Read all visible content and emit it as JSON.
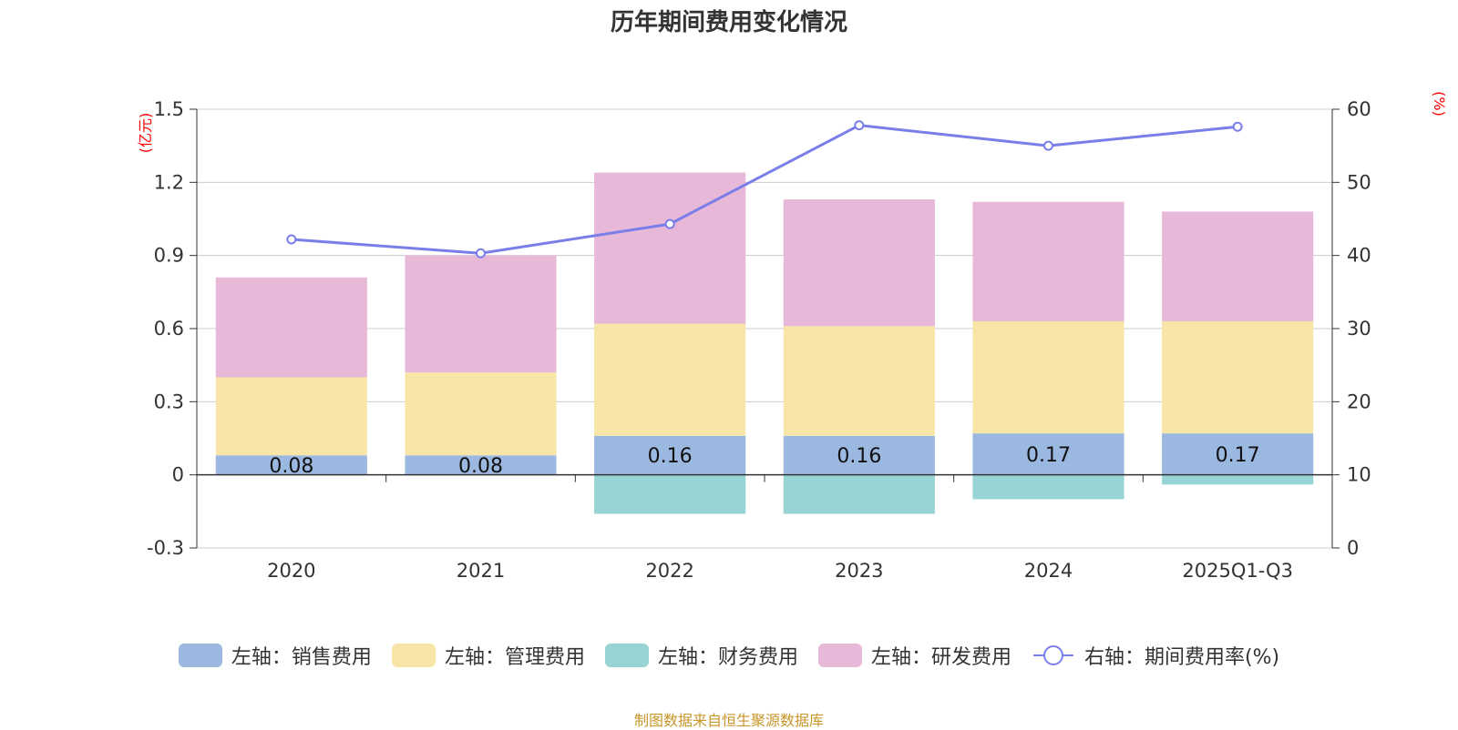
{
  "chart_data": {
    "type": "bar",
    "stacked": true,
    "title": "历年期间费用变化情况",
    "categories": [
      "2020",
      "2021",
      "2022",
      "2023",
      "2024",
      "2025Q1-Q3"
    ],
    "left_axis": {
      "unit": "(亿元)",
      "ylim": [
        -0.3,
        1.5
      ],
      "ticks": [
        "-0.3",
        "0",
        "0.3",
        "0.6",
        "0.9",
        "1.2",
        "1.5"
      ],
      "tick_values": [
        -0.3,
        0,
        0.3,
        0.6,
        0.9,
        1.2,
        1.5
      ]
    },
    "right_axis": {
      "unit": "(%)",
      "ylim": [
        0,
        60
      ],
      "ticks": [
        "0",
        "10",
        "20",
        "30",
        "40",
        "50",
        "60"
      ],
      "tick_values": [
        0,
        10,
        20,
        30,
        40,
        50,
        60
      ]
    },
    "series": [
      {
        "name": "左轴：销售费用",
        "axis": "left",
        "color": "#9bb8e0",
        "values": [
          0.08,
          0.08,
          0.16,
          0.16,
          0.17,
          0.17
        ],
        "labels": [
          "0.08",
          "0.08",
          "0.16",
          "0.16",
          "0.17",
          "0.17"
        ]
      },
      {
        "name": "左轴：管理费用",
        "axis": "left",
        "color": "#f8e6a8",
        "values": [
          0.32,
          0.34,
          0.46,
          0.45,
          0.46,
          0.46
        ]
      },
      {
        "name": "左轴：财务费用",
        "axis": "left",
        "color": "#98d4d4",
        "values": [
          0,
          0,
          -0.16,
          -0.16,
          -0.1,
          -0.04
        ]
      },
      {
        "name": "左轴：研发费用",
        "axis": "left",
        "color": "#e8b8d8",
        "values": [
          0.41,
          0.48,
          0.62,
          0.52,
          0.49,
          0.45
        ]
      },
      {
        "name": "右轴：期间费用率(%)",
        "axis": "right",
        "type": "line",
        "color": "#7a7ee8",
        "values": [
          42.2,
          40.3,
          44.3,
          57.8,
          55.0,
          57.6
        ]
      }
    ],
    "legend_position": "bottom-center",
    "grid": true
  },
  "source_text": "制图数据来自恒生聚源数据库"
}
